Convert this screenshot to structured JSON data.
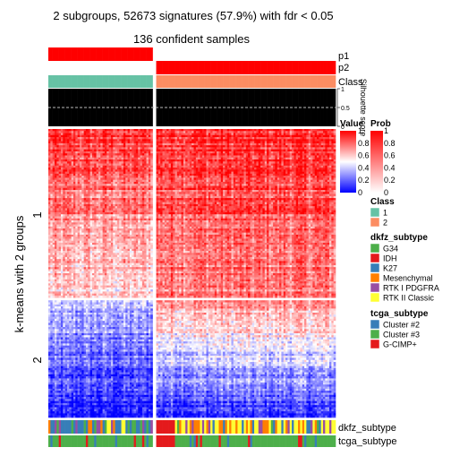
{
  "chart_data": {
    "type": "heatmap",
    "title": "2 subgroups, 52673 signatures (57.9%) with fdr < 0.05",
    "subtitle": "136 confident samples",
    "row_axis_label": "k-means with 2 groups",
    "row_groups": [
      "1",
      "2"
    ],
    "row_group_fraction_1": 0.59,
    "column_group_fraction_1": 0.37,
    "annotation_tracks": {
      "top": [
        "p1",
        "p2",
        "Class",
        "Silhouette score"
      ],
      "bottom": [
        "dkfz_subtype",
        "tcga_subtype"
      ]
    },
    "silhouette_ticks": [
      {
        "value": 0,
        "label": "0"
      },
      {
        "value": 0.5,
        "label": "0.5"
      },
      {
        "value": 1,
        "label": "1"
      }
    ],
    "legends": {
      "value": {
        "title": "Value",
        "ticks": [
          {
            "value": 1,
            "label": "1"
          },
          {
            "value": 0.8,
            "label": "0.8"
          },
          {
            "value": 0.6,
            "label": "0.6"
          },
          {
            "value": 0.4,
            "label": "0.4"
          },
          {
            "value": 0.2,
            "label": "0.2"
          },
          {
            "value": 0,
            "label": "0"
          }
        ],
        "colors": [
          "#0000ff",
          "#ffffff",
          "#ff0000"
        ]
      },
      "prob": {
        "title": "Prob",
        "ticks": [
          {
            "value": 1,
            "label": "1"
          },
          {
            "value": 0.8,
            "label": "0.8"
          },
          {
            "value": 0.6,
            "label": "0.6"
          },
          {
            "value": 0.4,
            "label": "0.4"
          },
          {
            "value": 0.2,
            "label": "0.2"
          },
          {
            "value": 0,
            "label": "0"
          }
        ],
        "colors": [
          "#ffffff",
          "#ff0000"
        ]
      },
      "class": {
        "title": "Class",
        "items": [
          {
            "label": "1",
            "color": "#66c2a5"
          },
          {
            "label": "2",
            "color": "#fc8d62"
          }
        ]
      },
      "dkfz_subtype": {
        "title": "dkfz_subtype",
        "items": [
          {
            "label": "G34",
            "color": "#4daf4a"
          },
          {
            "label": "IDH",
            "color": "#e41a1c"
          },
          {
            "label": "K27",
            "color": "#377eb8"
          },
          {
            "label": "Mesenchymal",
            "color": "#ff7f00"
          },
          {
            "label": "RTK I PDGFRA",
            "color": "#984ea3"
          },
          {
            "label": "RTK II Classic",
            "color": "#ffff33"
          }
        ]
      },
      "tcga_subtype": {
        "title": "tcga_subtype",
        "items": [
          {
            "label": "Cluster #2",
            "color": "#377eb8"
          },
          {
            "label": "Cluster #3",
            "color": "#4daf4a"
          },
          {
            "label": "G-CIMP+",
            "color": "#e41a1c"
          }
        ]
      }
    }
  }
}
